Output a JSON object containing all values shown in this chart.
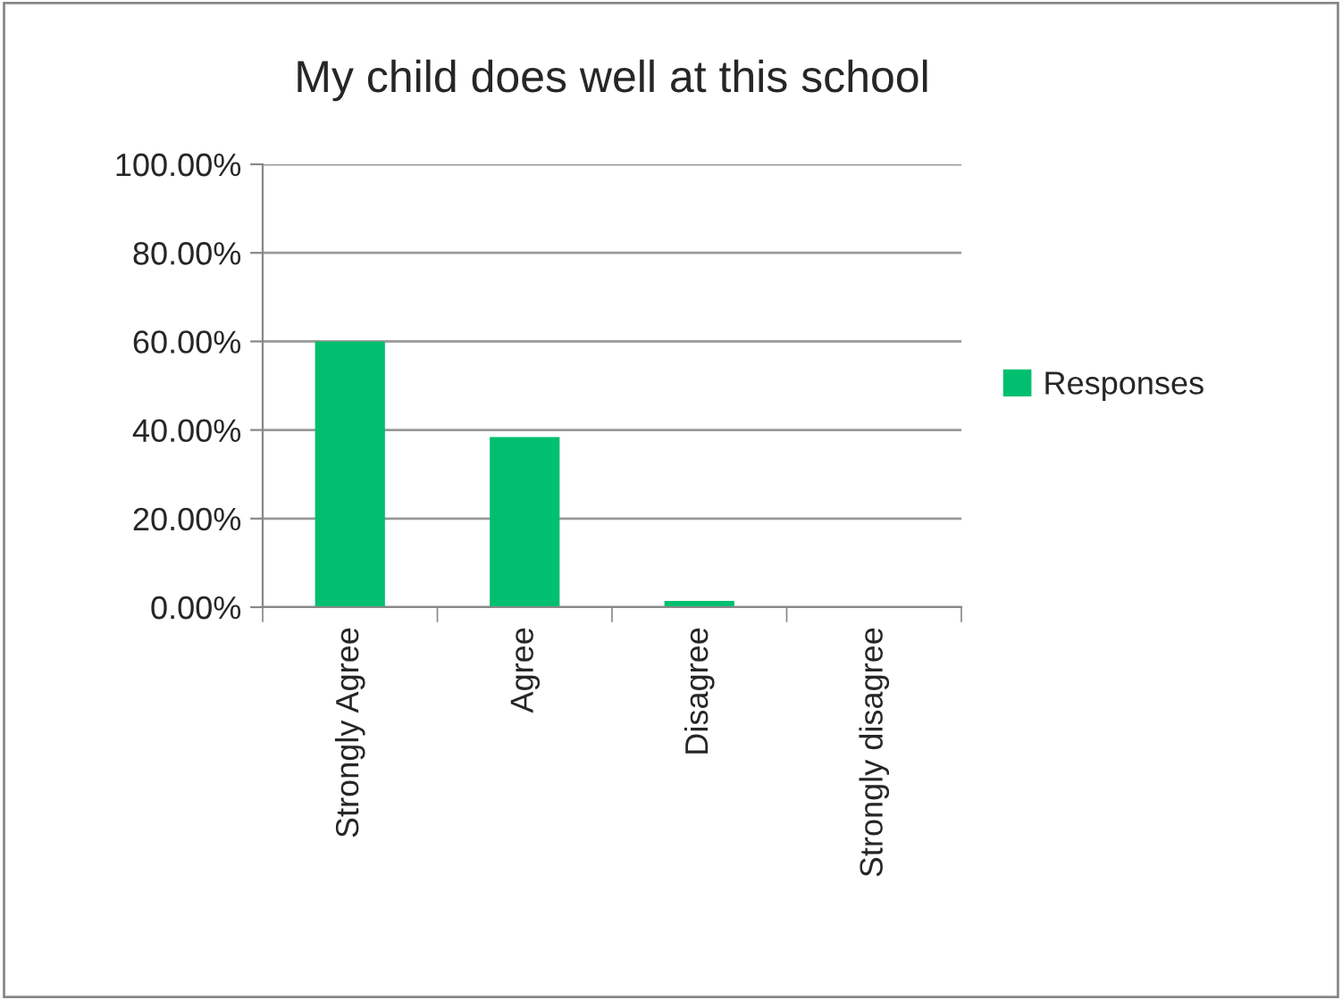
{
  "chart_data": {
    "type": "bar",
    "title": "My child does well at this school",
    "categories": [
      "Strongly Agree",
      "Agree",
      "Disagree",
      "Strongly disagree"
    ],
    "series": [
      {
        "name": "Responses",
        "color": "#00bf6f",
        "values": [
          60,
          38.4,
          1.4,
          0
        ]
      }
    ],
    "ylim": [
      0,
      100
    ],
    "yticks": [
      {
        "value": 0,
        "label": "0.00%"
      },
      {
        "value": 20,
        "label": "20.00%"
      },
      {
        "value": 40,
        "label": "40.00%"
      },
      {
        "value": 60,
        "label": "60.00%"
      },
      {
        "value": 80,
        "label": "80.00%"
      },
      {
        "value": 100,
        "label": "100.00%"
      }
    ],
    "grid": "y",
    "legend": "right"
  }
}
